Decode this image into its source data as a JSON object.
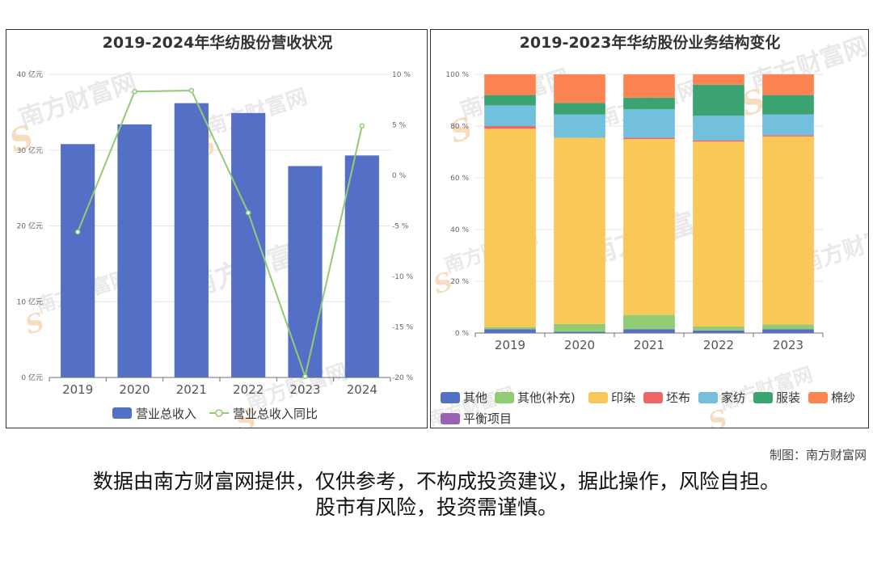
{
  "chart_data": [
    {
      "type": "bar",
      "title": "2019-2024年华纺股份营收状况",
      "categories": [
        "2019",
        "2020",
        "2021",
        "2022",
        "2023",
        "2024"
      ],
      "series": [
        {
          "name": "营业总收入",
          "type": "bar",
          "axis": "left",
          "color": "#5470c6",
          "values": [
            30.8,
            33.4,
            36.2,
            34.9,
            27.9,
            29.3
          ]
        },
        {
          "name": "营业总收入同比",
          "type": "line",
          "axis": "right",
          "color": "#91cc75",
          "values": [
            -5.6,
            8.3,
            8.4,
            -3.7,
            -19.9,
            4.9
          ]
        }
      ],
      "y_left": {
        "unit": "亿元",
        "ylim": [
          0,
          40
        ],
        "ticks": [
          "0 亿元",
          "10 亿元",
          "20 亿元",
          "30 亿元",
          "40 亿元"
        ]
      },
      "y_right": {
        "unit": "%",
        "ylim": [
          -20,
          10
        ],
        "ticks": [
          "-20 %",
          "-15 %",
          "-10 %",
          "-5 %",
          "0 %",
          "5 %",
          "10 %"
        ]
      },
      "grid": true,
      "legend": "bottom"
    },
    {
      "type": "bar",
      "stacked": true,
      "title": "2019-2023年华纺股份业务结构变化",
      "categories": [
        "2019",
        "2020",
        "2021",
        "2022",
        "2023"
      ],
      "series": [
        {
          "name": "其他",
          "color": "#5470c6",
          "values": [
            1.5,
            0.5,
            1.5,
            1.0,
            1.5
          ]
        },
        {
          "name": "其他(补充)",
          "color": "#91cc75",
          "values": [
            0.8,
            3.0,
            5.5,
            1.5,
            1.8
          ]
        },
        {
          "name": "印染",
          "color": "#fac858",
          "values": [
            76.7,
            72.0,
            68.0,
            71.5,
            72.7
          ]
        },
        {
          "name": "坯布",
          "color": "#ee6666",
          "values": [
            1.0,
            0.0,
            0.5,
            0.5,
            0.5
          ]
        },
        {
          "name": "家纺",
          "color": "#73c0de",
          "values": [
            8.0,
            9.0,
            11.0,
            9.5,
            8.0
          ]
        },
        {
          "name": "服装",
          "color": "#3ba272",
          "values": [
            4.0,
            4.5,
            4.5,
            12.0,
            7.5
          ]
        },
        {
          "name": "棉纱",
          "color": "#fc8452",
          "values": [
            8.0,
            11.0,
            9.0,
            4.0,
            8.0
          ]
        },
        {
          "name": "平衡项目",
          "color": "#9a60b4",
          "values": [
            0,
            0,
            0,
            0,
            0
          ]
        }
      ],
      "y": {
        "ylim": [
          0,
          100
        ],
        "ticks": [
          "0 %",
          "20 %",
          "40 %",
          "60 %",
          "80 %",
          "100 %"
        ]
      },
      "grid": true,
      "legend": "bottom"
    }
  ],
  "watermark": "南方财富网",
  "credit": "制图：南方财富网",
  "disclaimer": {
    "line1": "数据由南方财富网提供，仅供参考，不构成投资建议，据此操作，风险自担。",
    "line2": "股市有风险，投资需谨慎。"
  }
}
